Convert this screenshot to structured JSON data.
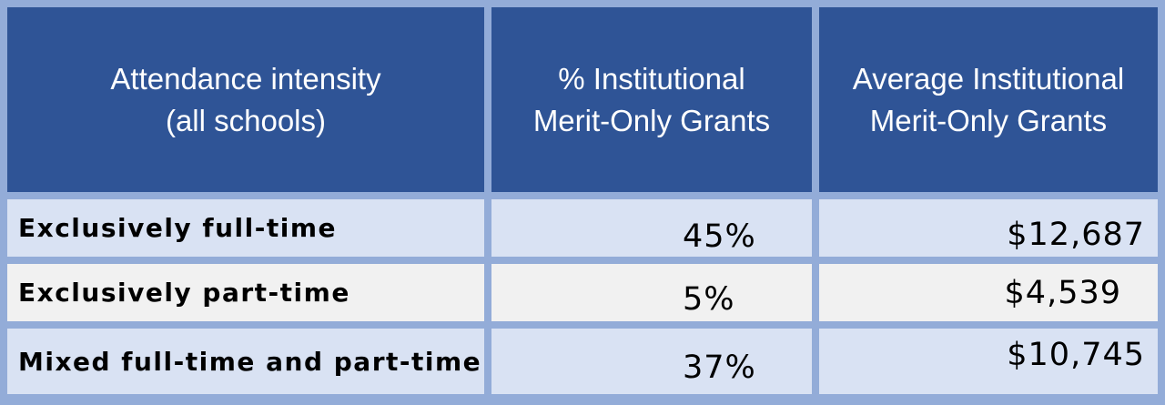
{
  "chart_data": {
    "type": "table",
    "columns": [
      "Attendance intensity\n(all schools)",
      "% Institutional\nMerit-Only Grants",
      "Average Institutional\nMerit-Only Grants"
    ],
    "rows": [
      {
        "attendance": "Exclusively full-time",
        "pct": "45%",
        "avg": "$12,687"
      },
      {
        "attendance": "Exclusively part-time",
        "pct": "5%",
        "avg": "$4,539"
      },
      {
        "attendance": "Mixed full-time and part-time",
        "pct": "37%",
        "avg": "$10,745"
      }
    ],
    "pct_values": [
      45,
      5,
      37
    ],
    "avg_values": [
      12687,
      4539,
      10745
    ]
  },
  "colors": {
    "header_bg": "#2f5496",
    "grid": "#93acd8",
    "row_alt_1": "#d9e2f3",
    "row_alt_2": "#f1f1f1"
  }
}
